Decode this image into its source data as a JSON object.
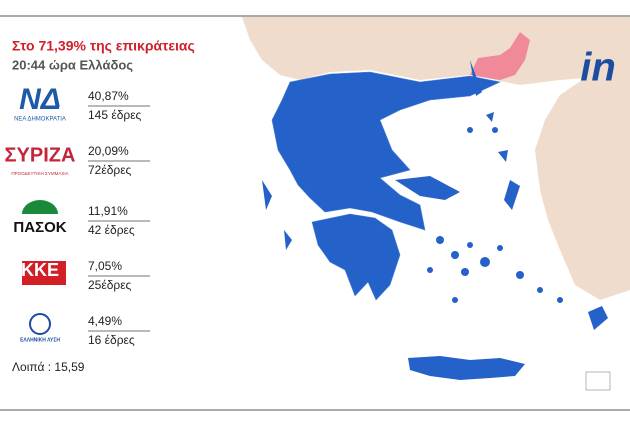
{
  "header": {
    "title": "Στο 71,39% της επικράτειας",
    "subtitle": "20:44 ώρα Ελλάδος"
  },
  "parties": [
    {
      "logo": "ΝΔ",
      "logo_sub": "ΝΕΑ ΔΗΜΟΚΡΑΤΙΑ",
      "percent": "40,87%",
      "seats": "145 έδρες"
    },
    {
      "logo": "ΣΥΡΙΖΑ",
      "logo_sub": "ΠΡΟΟΔΕΥΤΙΚΗ ΣΥΜΜΑΧΙΑ",
      "percent": "20,09%",
      "seats": "72έδρες"
    },
    {
      "logo": "ΠΑΣΟΚ",
      "percent": "11,91%",
      "seats": "42 έδρες"
    },
    {
      "logo": "ΚΚΕ",
      "percent": "7,05%",
      "seats": "25έδρες"
    },
    {
      "logo": "ΕΛΛΗΝΙΚΗ ΛΥΣΗ",
      "percent": "4,49%",
      "seats": "16 έδρες"
    }
  ],
  "others": "Λοιπά : 15,59",
  "brand": "in"
}
